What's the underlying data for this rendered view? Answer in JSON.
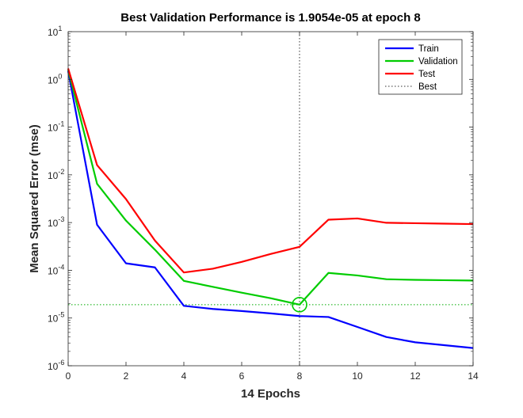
{
  "chart_data": {
    "type": "line",
    "title": "Best Validation Performance is 1.9054e-05 at epoch 8",
    "xlabel": "14 Epochs",
    "ylabel": "Mean Squared Error  (mse)",
    "xlim": [
      0,
      14
    ],
    "ylim": [
      1e-06,
      10
    ],
    "yscale": "log",
    "xticks": [
      0,
      2,
      4,
      6,
      8,
      10,
      12,
      14
    ],
    "yticks": [
      {
        "value": 1e-06,
        "base": "10",
        "exp": "-6"
      },
      {
        "value": 1e-05,
        "base": "10",
        "exp": "-5"
      },
      {
        "value": 0.0001,
        "base": "10",
        "exp": "-4"
      },
      {
        "value": 0.001,
        "base": "10",
        "exp": "-3"
      },
      {
        "value": 0.01,
        "base": "10",
        "exp": "-2"
      },
      {
        "value": 0.1,
        "base": "10",
        "exp": "-1"
      },
      {
        "value": 1,
        "base": "10",
        "exp": "0"
      },
      {
        "value": 10,
        "base": "10",
        "exp": "1"
      }
    ],
    "grid": false,
    "x": [
      0,
      1,
      2,
      3,
      4,
      5,
      6,
      7,
      8,
      9,
      10,
      11,
      12,
      13,
      14
    ],
    "series": [
      {
        "name": "Train",
        "color": "#0000ff",
        "values": [
          1.5,
          0.0009,
          0.00014,
          0.000115,
          1.8e-05,
          1.55e-05,
          1.4e-05,
          1.25e-05,
          1.1e-05,
          1.05e-05,
          6.5e-06,
          4e-06,
          3.1e-06,
          2.7e-06,
          2.35e-06
        ]
      },
      {
        "name": "Validation",
        "color": "#00cc00",
        "values": [
          1.6,
          0.0065,
          0.0011,
          0.00027,
          6e-05,
          4.5e-05,
          3.4e-05,
          2.6e-05,
          1.9054e-05,
          8.8e-05,
          7.8e-05,
          6.5e-05,
          6.3e-05,
          6.2e-05,
          6.1e-05
        ]
      },
      {
        "name": "Test",
        "color": "#ff0000",
        "values": [
          1.7,
          0.016,
          0.0031,
          0.00042,
          9e-05,
          0.000108,
          0.00015,
          0.00022,
          0.00031,
          0.00115,
          0.00122,
          0.00099,
          0.00097,
          0.00095,
          0.00093
        ]
      }
    ],
    "best": {
      "name": "Best",
      "epoch": 8,
      "value": 1.9054e-05,
      "color": "#00cc00"
    },
    "legend_position": "top-right"
  }
}
